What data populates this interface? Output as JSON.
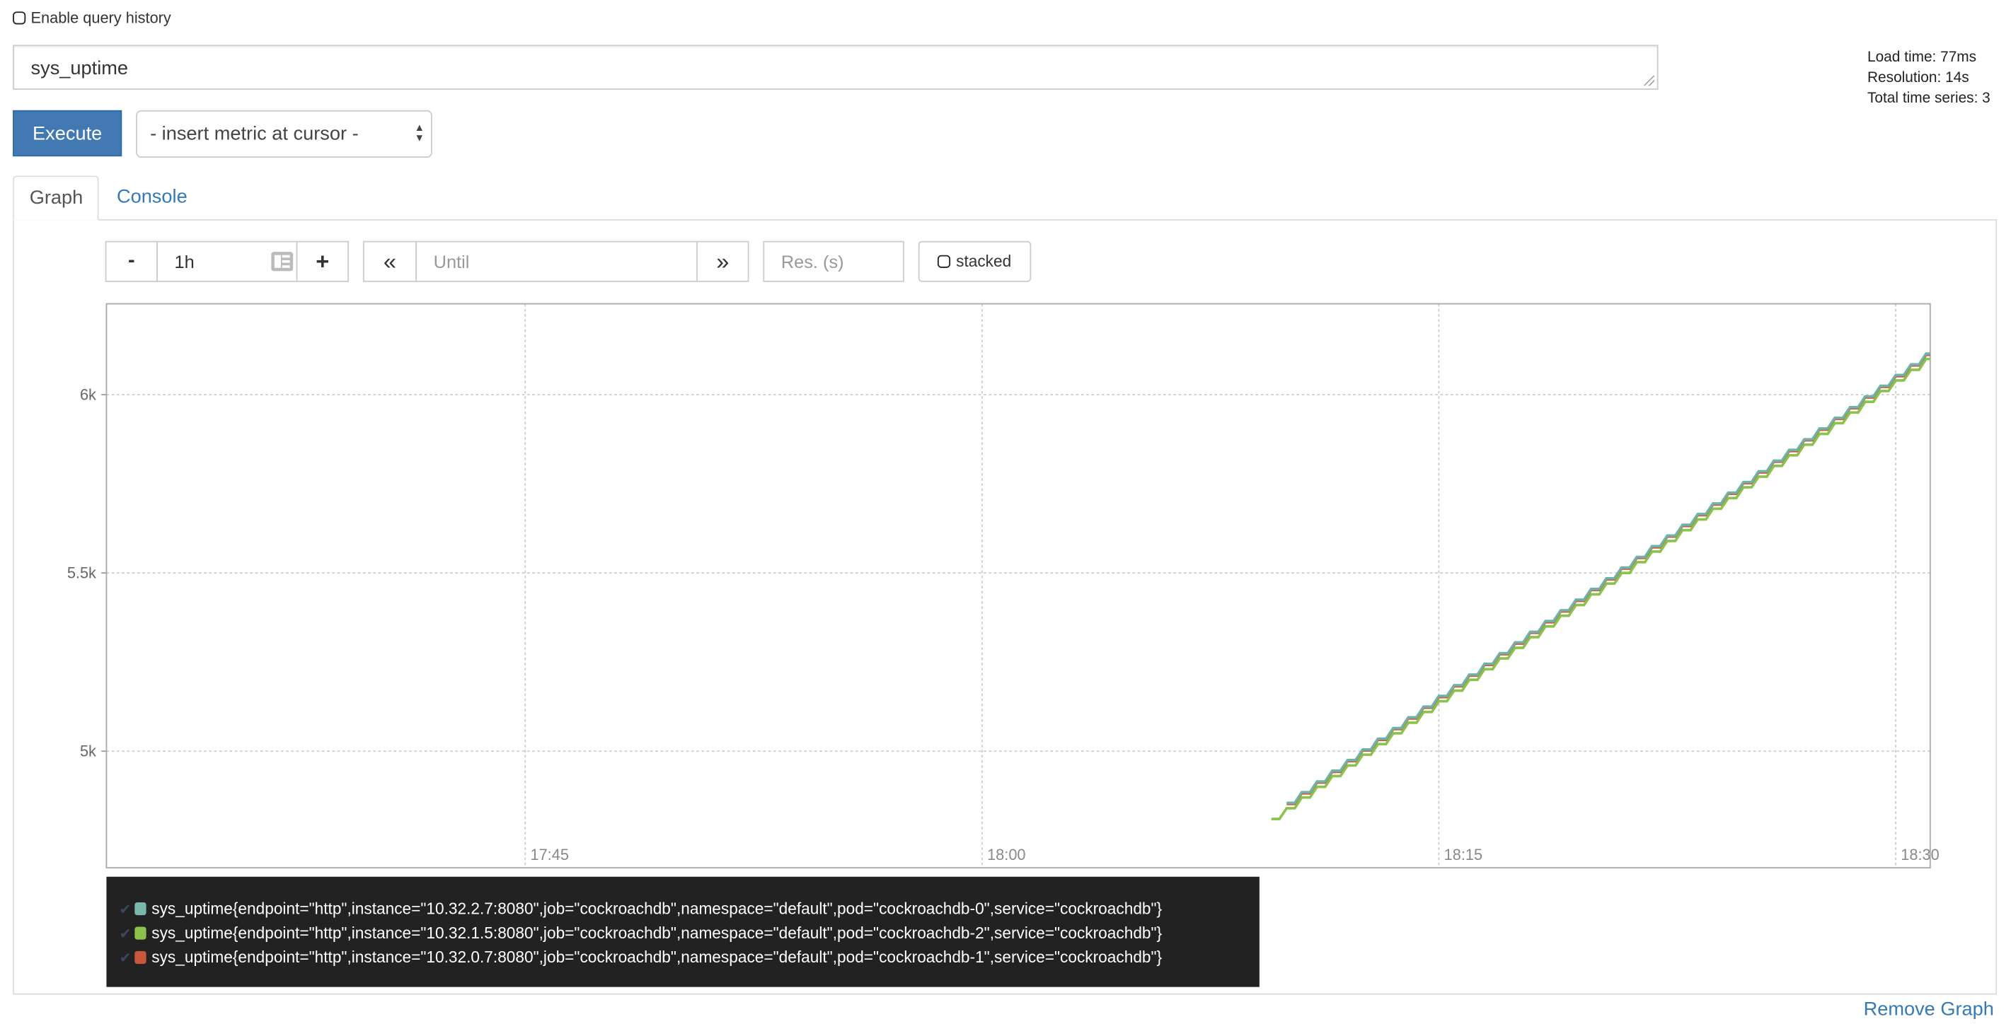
{
  "query_history": {
    "label": "Enable query history",
    "checked": false
  },
  "expression": {
    "value": "sys_uptime"
  },
  "stats": {
    "load_time": "Load time: 77ms",
    "resolution": "Resolution: 14s",
    "total_series": "Total time series: 3"
  },
  "execute_label": "Execute",
  "metric_select": {
    "selected": "- insert metric at cursor -"
  },
  "tabs": [
    {
      "label": "Graph",
      "active": true
    },
    {
      "label": "Console",
      "active": false
    }
  ],
  "controls": {
    "minus": "-",
    "range": "1h",
    "plus": "+",
    "back": "«",
    "until_placeholder": "Until",
    "forward": "»",
    "res_placeholder": "Res. (s)",
    "stacked_label": "stacked",
    "stacked_checked": false
  },
  "colors": {
    "accent": "#4379b2",
    "link": "#337ab7",
    "series": [
      "#6fb3a8",
      "#8bc34a",
      "#d0583c"
    ]
  },
  "chart_data": {
    "type": "line",
    "xlim": [
      "17:31:15",
      "18:31:08"
    ],
    "ylim": [
      4673,
      6255
    ],
    "xticks": [
      "17:45",
      "18:00",
      "18:15",
      "18:30"
    ],
    "yticks": [
      {
        "value": 5000,
        "label": "5k"
      },
      {
        "value": 5500,
        "label": "5.5k"
      },
      {
        "value": 6000,
        "label": "6k"
      }
    ],
    "grid": true,
    "x": [
      "18:09:30",
      "18:10:00",
      "18:10:30",
      "18:11:00",
      "18:11:30",
      "18:12:00",
      "18:12:30",
      "18:13:00",
      "18:13:30",
      "18:14:00",
      "18:14:30",
      "18:15:00",
      "18:15:30",
      "18:16:00",
      "18:16:30",
      "18:17:00",
      "18:17:30",
      "18:18:00",
      "18:18:30",
      "18:19:00",
      "18:19:30",
      "18:20:00",
      "18:20:30",
      "18:21:00",
      "18:21:30",
      "18:22:00",
      "18:22:30",
      "18:23:00",
      "18:23:30",
      "18:24:00",
      "18:24:30",
      "18:25:00",
      "18:25:30",
      "18:26:00",
      "18:26:30",
      "18:27:00",
      "18:27:30",
      "18:28:00",
      "18:28:30",
      "18:29:00",
      "18:29:30",
      "18:30:00",
      "18:30:30",
      "18:31:00"
    ],
    "series": [
      {
        "name": "sys_uptime{endpoint=\"http\",instance=\"10.32.0.7:8080\",job=\"cockroachdb\",namespace=\"default\",pod=\"cockroachdb-1\",service=\"cockroachdb\"}",
        "color": "#d0583c",
        "values": [
          null,
          4852,
          4882,
          4912,
          4942,
          4972,
          5002,
          5032,
          5062,
          5092,
          5122,
          5152,
          5182,
          5212,
          5242,
          5272,
          5302,
          5332,
          5362,
          5392,
          5422,
          5452,
          5482,
          5512,
          5542,
          5572,
          5602,
          5632,
          5662,
          5692,
          5722,
          5752,
          5782,
          5812,
          5842,
          5872,
          5902,
          5932,
          5962,
          5992,
          6022,
          6052,
          6082,
          6112
        ]
      },
      {
        "name": "sys_uptime{endpoint=\"http\",instance=\"10.32.1.5:8080\",job=\"cockroachdb\",namespace=\"default\",pod=\"cockroachdb-2\",service=\"cockroachdb\"}",
        "color": "#8bc34a",
        "values": [
          4810,
          4840,
          4870,
          4900,
          4930,
          4960,
          4990,
          5020,
          5050,
          5080,
          5110,
          5140,
          5170,
          5200,
          5230,
          5260,
          5290,
          5320,
          5350,
          5380,
          5410,
          5440,
          5470,
          5500,
          5530,
          5560,
          5590,
          5620,
          5650,
          5680,
          5710,
          5740,
          5770,
          5800,
          5830,
          5860,
          5890,
          5920,
          5950,
          5980,
          6010,
          6040,
          6070,
          6100
        ]
      },
      {
        "name": "sys_uptime{endpoint=\"http\",instance=\"10.32.2.7:8080\",job=\"cockroachdb\",namespace=\"default\",pod=\"cockroachdb-0\",service=\"cockroachdb\"}",
        "color": "#6fb3a8",
        "values": [
          null,
          4855,
          4885,
          4915,
          4945,
          4975,
          5005,
          5035,
          5065,
          5095,
          5125,
          5155,
          5185,
          5215,
          5245,
          5275,
          5305,
          5335,
          5365,
          5395,
          5425,
          5455,
          5485,
          5515,
          5545,
          5575,
          5605,
          5635,
          5665,
          5695,
          5725,
          5755,
          5785,
          5815,
          5845,
          5875,
          5905,
          5935,
          5965,
          5995,
          6025,
          6055,
          6085,
          6115
        ]
      }
    ]
  },
  "legend": [
    {
      "label": "sys_uptime{endpoint=\"http\",instance=\"10.32.2.7:8080\",job=\"cockroachdb\",namespace=\"default\",pod=\"cockroachdb-0\",service=\"cockroachdb\"}",
      "color": "#7ab8ae"
    },
    {
      "label": "sys_uptime{endpoint=\"http\",instance=\"10.32.1.5:8080\",job=\"cockroachdb\",namespace=\"default\",pod=\"cockroachdb-2\",service=\"cockroachdb\"}",
      "color": "#8bc34a"
    },
    {
      "label": "sys_uptime{endpoint=\"http\",instance=\"10.32.0.7:8080\",job=\"cockroachdb\",namespace=\"default\",pod=\"cockroachdb-1\",service=\"cockroachdb\"}",
      "color": "#c9573c"
    }
  ],
  "remove_graph_label": "Remove Graph"
}
